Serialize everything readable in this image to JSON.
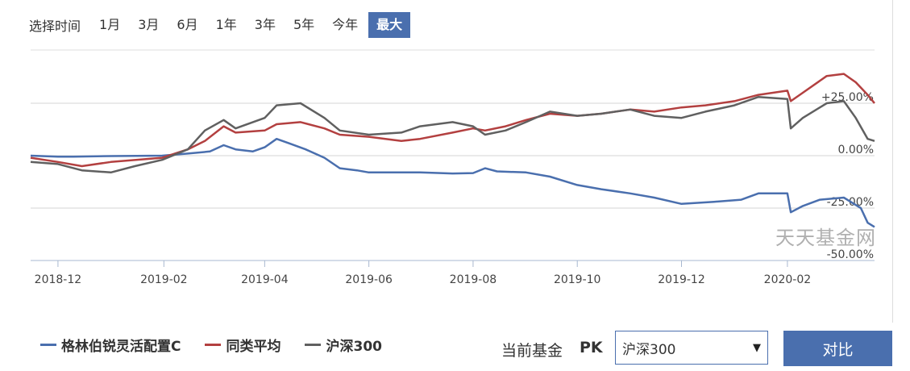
{
  "range_bar": {
    "label": "选择时间",
    "options": [
      "1月",
      "3月",
      "6月",
      "1年",
      "3年",
      "5年",
      "今年",
      "最大"
    ],
    "active": "最大"
  },
  "watermark": "天天基金网",
  "legend": {
    "items": [
      {
        "label": "格林伯锐灵活配置C",
        "color": "#4a6fae"
      },
      {
        "label": "同类平均",
        "color": "#b34040"
      },
      {
        "label": "沪深300",
        "color": "#606060"
      }
    ]
  },
  "compare": {
    "label": "当前基金",
    "pk": "PK",
    "selected": "沪深300",
    "arrow": "▼",
    "button": "对比"
  },
  "colors": {
    "accent": "#4a6fae",
    "fund": "#4a6fae",
    "peer": "#b34040",
    "index": "#606060"
  },
  "chart_data": {
    "type": "line",
    "x_type": "date",
    "y_unit": "%",
    "ylim": [
      -50,
      50
    ],
    "y_ticks": [
      {
        "value": 25,
        "label": "+25.00%"
      },
      {
        "value": 0,
        "label": "0.00%"
      },
      {
        "value": -25,
        "label": "-25.00%"
      },
      {
        "value": -50,
        "label": "-50.00%"
      }
    ],
    "x_ticks": [
      {
        "date": "2018-12",
        "label": "2018-12"
      },
      {
        "date": "2019-02",
        "label": "2019-02"
      },
      {
        "date": "2019-04",
        "label": "2019-04"
      },
      {
        "date": "2019-06",
        "label": "2019-06"
      },
      {
        "date": "2019-08",
        "label": "2019-08"
      },
      {
        "date": "2019-10",
        "label": "2019-10"
      },
      {
        "date": "2019-12",
        "label": "2019-12"
      },
      {
        "date": "2020-02",
        "label": "2020-02"
      }
    ],
    "series": [
      {
        "name": "格林伯锐灵活配置C",
        "color": "#4a6fae",
        "points": [
          [
            "2018-11-15",
            0
          ],
          [
            "2018-12-01",
            -0.5
          ],
          [
            "2018-12-10",
            -0.5
          ],
          [
            "2019-01-01",
            -0.2
          ],
          [
            "2019-01-31",
            0
          ],
          [
            "2019-02-15",
            1
          ],
          [
            "2019-02-28",
            2
          ],
          [
            "2019-03-08",
            5
          ],
          [
            "2019-03-15",
            3
          ],
          [
            "2019-03-25",
            2
          ],
          [
            "2019-04-01",
            4
          ],
          [
            "2019-04-08",
            8
          ],
          [
            "2019-04-15",
            6
          ],
          [
            "2019-04-25",
            3
          ],
          [
            "2019-05-06",
            -1
          ],
          [
            "2019-05-15",
            -6
          ],
          [
            "2019-05-25",
            -7
          ],
          [
            "2019-06-01",
            -8
          ],
          [
            "2019-06-15",
            -8
          ],
          [
            "2019-07-01",
            -8
          ],
          [
            "2019-07-20",
            -8.5
          ],
          [
            "2019-08-01",
            -8.3
          ],
          [
            "2019-08-08",
            -6
          ],
          [
            "2019-08-15",
            -7.5
          ],
          [
            "2019-09-01",
            -8
          ],
          [
            "2019-09-15",
            -10
          ],
          [
            "2019-10-01",
            -14
          ],
          [
            "2019-10-15",
            -16
          ],
          [
            "2019-11-01",
            -18
          ],
          [
            "2019-11-15",
            -20
          ],
          [
            "2019-12-01",
            -23
          ],
          [
            "2019-12-20",
            -22
          ],
          [
            "2020-01-05",
            -21
          ],
          [
            "2020-01-15",
            -18
          ],
          [
            "2020-02-01",
            -18
          ],
          [
            "2020-02-03",
            -27
          ],
          [
            "2020-02-10",
            -24
          ],
          [
            "2020-02-20",
            -21
          ],
          [
            "2020-03-05",
            -20
          ],
          [
            "2020-03-15",
            -25
          ],
          [
            "2020-03-19",
            -32
          ],
          [
            "2020-03-23",
            -34
          ]
        ]
      },
      {
        "name": "同类平均",
        "color": "#b34040",
        "points": [
          [
            "2018-11-15",
            -1
          ],
          [
            "2018-12-01",
            -3
          ],
          [
            "2018-12-15",
            -5
          ],
          [
            "2019-01-01",
            -3
          ],
          [
            "2019-01-31",
            -1
          ],
          [
            "2019-02-15",
            3
          ],
          [
            "2019-02-25",
            7
          ],
          [
            "2019-03-08",
            14
          ],
          [
            "2019-03-15",
            11
          ],
          [
            "2019-04-01",
            12
          ],
          [
            "2019-04-08",
            15
          ],
          [
            "2019-04-22",
            16
          ],
          [
            "2019-05-06",
            13
          ],
          [
            "2019-05-15",
            10
          ],
          [
            "2019-06-01",
            9
          ],
          [
            "2019-06-20",
            7
          ],
          [
            "2019-07-01",
            8
          ],
          [
            "2019-07-20",
            11
          ],
          [
            "2019-08-01",
            13
          ],
          [
            "2019-08-08",
            12
          ],
          [
            "2019-08-20",
            14
          ],
          [
            "2019-09-01",
            17
          ],
          [
            "2019-09-15",
            20
          ],
          [
            "2019-10-01",
            19
          ],
          [
            "2019-10-15",
            20
          ],
          [
            "2019-11-01",
            22
          ],
          [
            "2019-11-15",
            21
          ],
          [
            "2019-12-01",
            23
          ],
          [
            "2019-12-15",
            24
          ],
          [
            "2020-01-01",
            26
          ],
          [
            "2020-01-15",
            29
          ],
          [
            "2020-02-01",
            31
          ],
          [
            "2020-02-03",
            26
          ],
          [
            "2020-02-10",
            30
          ],
          [
            "2020-02-24",
            38
          ],
          [
            "2020-03-05",
            39
          ],
          [
            "2020-03-12",
            35
          ],
          [
            "2020-03-19",
            29
          ],
          [
            "2020-03-23",
            25
          ]
        ]
      },
      {
        "name": "沪深300",
        "color": "#606060",
        "points": [
          [
            "2018-11-15",
            -3
          ],
          [
            "2018-12-01",
            -4
          ],
          [
            "2018-12-15",
            -7
          ],
          [
            "2019-01-01",
            -8
          ],
          [
            "2019-01-15",
            -5
          ],
          [
            "2019-01-31",
            -2
          ],
          [
            "2019-02-15",
            3
          ],
          [
            "2019-02-25",
            12
          ],
          [
            "2019-03-08",
            17
          ],
          [
            "2019-03-15",
            13
          ],
          [
            "2019-04-01",
            18
          ],
          [
            "2019-04-08",
            24
          ],
          [
            "2019-04-22",
            25
          ],
          [
            "2019-05-06",
            18
          ],
          [
            "2019-05-15",
            12
          ],
          [
            "2019-06-01",
            10
          ],
          [
            "2019-06-20",
            11
          ],
          [
            "2019-07-01",
            14
          ],
          [
            "2019-07-20",
            16
          ],
          [
            "2019-08-01",
            14
          ],
          [
            "2019-08-08",
            10
          ],
          [
            "2019-08-20",
            12
          ],
          [
            "2019-09-01",
            16
          ],
          [
            "2019-09-15",
            21
          ],
          [
            "2019-10-01",
            19
          ],
          [
            "2019-10-15",
            20
          ],
          [
            "2019-11-01",
            22
          ],
          [
            "2019-11-15",
            19
          ],
          [
            "2019-12-01",
            18
          ],
          [
            "2019-12-15",
            21
          ],
          [
            "2020-01-01",
            24
          ],
          [
            "2020-01-15",
            28
          ],
          [
            "2020-02-01",
            27
          ],
          [
            "2020-02-03",
            13
          ],
          [
            "2020-02-10",
            18
          ],
          [
            "2020-02-24",
            25
          ],
          [
            "2020-03-05",
            26
          ],
          [
            "2020-03-12",
            18
          ],
          [
            "2020-03-19",
            8
          ],
          [
            "2020-03-23",
            7
          ]
        ]
      }
    ]
  }
}
